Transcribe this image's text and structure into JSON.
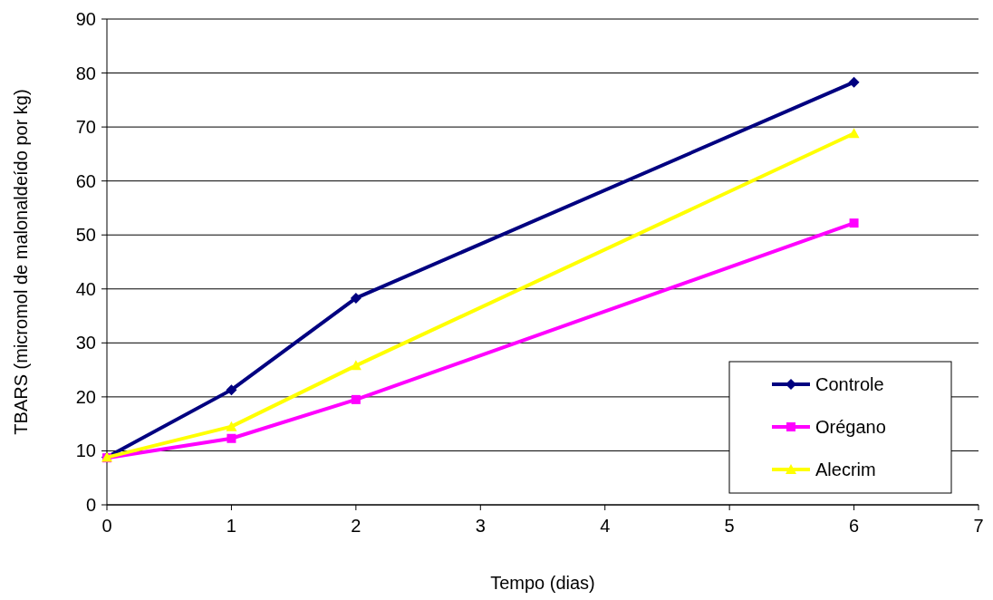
{
  "chart_data": {
    "type": "line",
    "xlabel": "Tempo (dias)",
    "ylabel": "TBARS (micromol de malonaldeído por kg)",
    "x": [
      0,
      1,
      2,
      6
    ],
    "series": [
      {
        "name": "Controle",
        "color": "#000080",
        "marker": "diamond",
        "values": [
          8.8,
          21.3,
          38.3,
          78.3
        ]
      },
      {
        "name": "Orégano",
        "color": "#ff00ff",
        "marker": "square",
        "values": [
          8.7,
          12.3,
          19.5,
          52.2
        ]
      },
      {
        "name": "Alecrim",
        "color": "#ffff00",
        "marker": "triangle",
        "values": [
          8.8,
          14.5,
          25.8,
          68.8
        ]
      }
    ],
    "xlim": [
      0,
      7
    ],
    "xticks": [
      0,
      1,
      2,
      3,
      4,
      5,
      6,
      7
    ],
    "ylim": [
      0,
      90
    ],
    "yticks": [
      0,
      10,
      20,
      30,
      40,
      50,
      60,
      70,
      80,
      90
    ],
    "grid": "y",
    "legend": "bottom right"
  }
}
